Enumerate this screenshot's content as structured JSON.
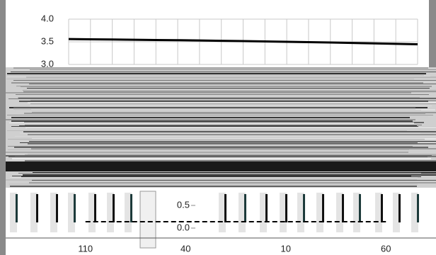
{
  "chart_data": [
    {
      "type": "line",
      "values": [
        3.56,
        3.555,
        3.55,
        3.545,
        3.54,
        3.535,
        3.53,
        3.522,
        3.515,
        3.507,
        3.5,
        3.492,
        3.485,
        3.475,
        3.465,
        3.455,
        3.445
      ],
      "color": "#000000",
      "ylim": [
        3.0,
        4.0
      ],
      "yticks": [
        {
          "value": 3.0,
          "label": "3.0"
        },
        {
          "value": 3.5,
          "label": "3.5"
        },
        {
          "value": 4.0,
          "label": "4.0"
        }
      ],
      "grid": true
    },
    {
      "type": "line",
      "categories": [
        "110",
        "40",
        "10",
        "60"
      ],
      "values": [
        0.14,
        0.14,
        0.14,
        0.14
      ],
      "color": "#000000",
      "dashed": true,
      "ylim": [
        0.0,
        0.5
      ],
      "yticks": [
        {
          "value": 0.0,
          "label": "0.0"
        },
        {
          "value": 0.5,
          "label": "0.5"
        }
      ]
    }
  ]
}
